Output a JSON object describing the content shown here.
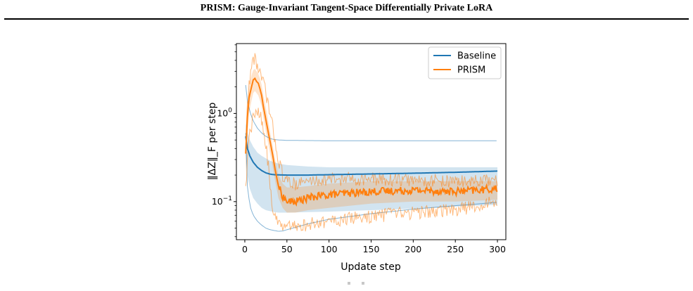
{
  "header": {
    "title": "PRISM: Gauge-Invariant Tangent-Space Differentially Private LoRA"
  },
  "colors": {
    "baseline": "#1f77b4",
    "prism": "#ff7f0e",
    "baseline_band": "#c6dbef",
    "prism_band": "#ffd1a8"
  },
  "chart_data": {
    "type": "line",
    "title": "",
    "xlabel": "Update step",
    "ylabel": "‖ΔZ‖_F per step",
    "y_scale": "log",
    "xlim": [
      -10,
      310
    ],
    "ylim": [
      0.037,
      6.2
    ],
    "xticks": [
      0,
      50,
      100,
      150,
      200,
      250,
      300
    ],
    "yticks": [
      {
        "value": 1,
        "label": "10^0"
      },
      {
        "value": 0.1,
        "label": "10^-1"
      }
    ],
    "grid": false,
    "legend_position": "top-right",
    "series": [
      {
        "name": "Baseline",
        "color": "#1f77b4",
        "mean_x": [
          1,
          3,
          6,
          10,
          15,
          20,
          25,
          30,
          35,
          40,
          50,
          75,
          100,
          150,
          200,
          250,
          300
        ],
        "mean_y": [
          0.55,
          0.4,
          0.33,
          0.28,
          0.245,
          0.225,
          0.212,
          0.205,
          0.202,
          0.201,
          0.2,
          0.2,
          0.202,
          0.206,
          0.21,
          0.215,
          0.222
        ],
        "band_upper_y": [
          0.78,
          0.62,
          0.5,
          0.42,
          0.36,
          0.33,
          0.31,
          0.29,
          0.28,
          0.27,
          0.26,
          0.25,
          0.245,
          0.245,
          0.245,
          0.245,
          0.245
        ],
        "band_lower_y": [
          0.35,
          0.2,
          0.14,
          0.11,
          0.095,
          0.085,
          0.08,
          0.078,
          0.076,
          0.075,
          0.075,
          0.076,
          0.077,
          0.08,
          0.083,
          0.088,
          0.092
        ],
        "run_upper_x": [
          1,
          3,
          6,
          10,
          15,
          20,
          25,
          30,
          35,
          40,
          50,
          100,
          150,
          200,
          250,
          300
        ],
        "run_upper_y": [
          2.1,
          1.4,
          1.05,
          0.82,
          0.68,
          0.6,
          0.55,
          0.52,
          0.505,
          0.5,
          0.495,
          0.49,
          0.49,
          0.49,
          0.49,
          0.49
        ],
        "run_lower_x": [
          1,
          3,
          6,
          10,
          15,
          20,
          25,
          30,
          35,
          40,
          45,
          50,
          60,
          75,
          100,
          150,
          200,
          250,
          300
        ],
        "run_lower_y": [
          0.6,
          0.15,
          0.09,
          0.07,
          0.06,
          0.054,
          0.05,
          0.048,
          0.047,
          0.046,
          0.0465,
          0.048,
          0.051,
          0.056,
          0.063,
          0.073,
          0.082,
          0.09,
          0.098
        ]
      },
      {
        "name": "PRISM",
        "color": "#ff7f0e",
        "mean_x": [
          1,
          3,
          5,
          8,
          10,
          12,
          14,
          16,
          18,
          20,
          22,
          25,
          28,
          30,
          33,
          36,
          40,
          45,
          50,
          60,
          75,
          100,
          150,
          200,
          250,
          300
        ],
        "mean_y": [
          0.35,
          0.9,
          1.5,
          2.0,
          2.4,
          2.5,
          2.3,
          2.2,
          1.9,
          1.6,
          1.2,
          0.85,
          0.6,
          0.48,
          0.34,
          0.23,
          0.15,
          0.115,
          0.1,
          0.1,
          0.11,
          0.12,
          0.13,
          0.135,
          0.13,
          0.14
        ],
        "band_upper_y": [
          0.5,
          1.2,
          2.0,
          2.7,
          3.1,
          3.2,
          3.0,
          2.8,
          2.5,
          2.1,
          1.6,
          1.15,
          0.8,
          0.62,
          0.44,
          0.3,
          0.2,
          0.16,
          0.145,
          0.145,
          0.15,
          0.16,
          0.17,
          0.17,
          0.17,
          0.17
        ],
        "band_lower_y": [
          0.2,
          0.55,
          1.0,
          1.4,
          1.7,
          1.8,
          1.7,
          1.6,
          1.4,
          1.2,
          0.9,
          0.62,
          0.44,
          0.35,
          0.25,
          0.17,
          0.11,
          0.085,
          0.075,
          0.075,
          0.08,
          0.085,
          0.095,
          0.1,
          0.1,
          0.105
        ],
        "run_upper_x": [
          1,
          3,
          5,
          8,
          10,
          12,
          14,
          16,
          18,
          20,
          22,
          25,
          28,
          30,
          33,
          36,
          40,
          45,
          50,
          60,
          75,
          100,
          150,
          200,
          250,
          300
        ],
        "run_upper_y": [
          0.4,
          1.2,
          2.2,
          3.3,
          4.0,
          4.4,
          3.7,
          3.2,
          2.8,
          2.5,
          2.2,
          1.7,
          1.25,
          0.95,
          0.7,
          0.48,
          0.3,
          0.2,
          0.17,
          0.16,
          0.17,
          0.18,
          0.18,
          0.175,
          0.17,
          0.17
        ],
        "run_lower_x": [
          1,
          3,
          5,
          8,
          10,
          14,
          18,
          22,
          25,
          28,
          30,
          33,
          36,
          40,
          45,
          50,
          60,
          75,
          100,
          150,
          200,
          250,
          300
        ],
        "run_lower_y": [
          0.13,
          0.3,
          0.5,
          0.7,
          0.9,
          1.1,
          0.95,
          0.7,
          0.45,
          0.25,
          0.15,
          0.09,
          0.065,
          0.055,
          0.05,
          0.05,
          0.052,
          0.055,
          0.06,
          0.068,
          0.075,
          0.08,
          0.1
        ]
      }
    ]
  }
}
